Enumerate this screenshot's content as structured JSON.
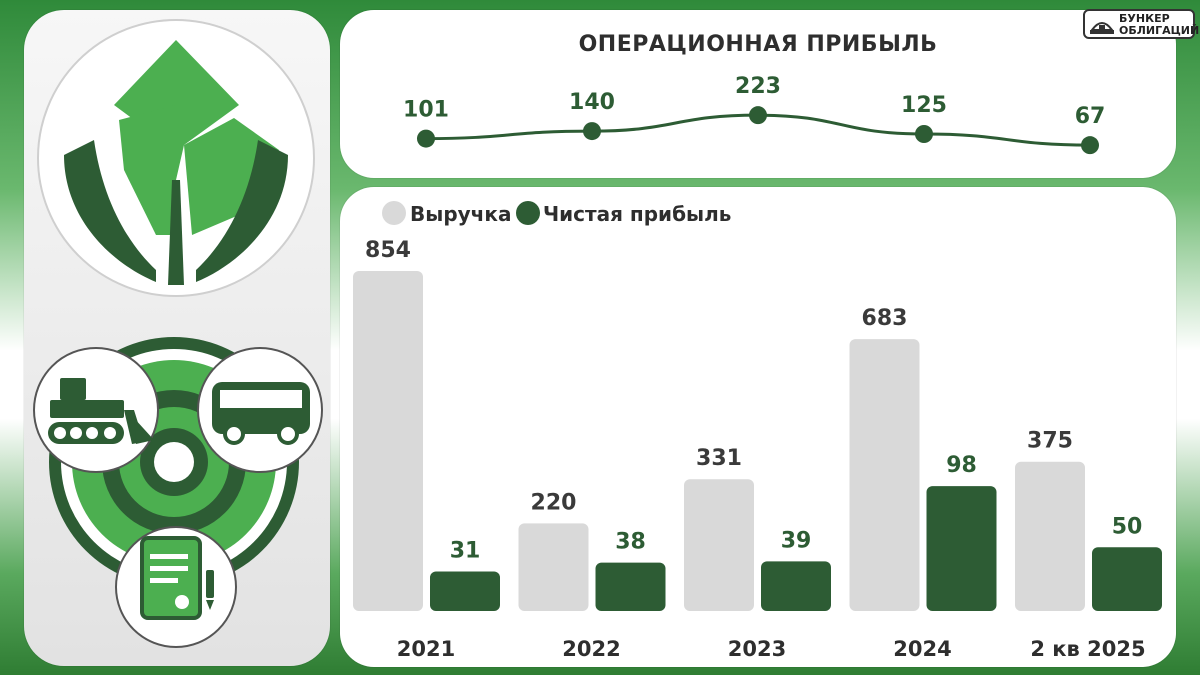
{
  "header": {
    "op_title": "ОПЕРАЦИОННАЯ ПРИБЫЛЬ",
    "brand_line1": "БУНКЕР",
    "brand_line2": "ОБЛИГАЦИЙ"
  },
  "colors": {
    "revenue": "#d9d9d9",
    "net_profit": "#2d5c34",
    "op_line": "#2d5c34",
    "brand_green": "#4caf50"
  },
  "icons": [
    "leaf-logo-icon",
    "bulldozer-icon",
    "bus-icon",
    "document-icon",
    "target-icon",
    "bunker-icon"
  ],
  "chart_data": [
    {
      "type": "line",
      "title": "ОПЕРАЦИОННАЯ ПРИБЫЛЬ",
      "categories": [
        "2021",
        "2022",
        "2023",
        "2024",
        "2 кв 2025"
      ],
      "series": [
        {
          "name": "",
          "values": [
            101,
            140,
            223,
            125,
            67
          ]
        }
      ],
      "ylim": [
        0,
        250
      ],
      "grid": false
    },
    {
      "type": "bar",
      "categories": [
        "2021",
        "2022",
        "2023",
        "2024",
        "2 кв 2025"
      ],
      "series": [
        {
          "name": "Выручка",
          "values": [
            854,
            220,
            331,
            683,
            375
          ]
        },
        {
          "name": "Чистая прибыль",
          "values": [
            31,
            38,
            39,
            98,
            50
          ]
        }
      ],
      "ylim": [
        0,
        854
      ],
      "legend": "top-left",
      "grid": false
    }
  ]
}
